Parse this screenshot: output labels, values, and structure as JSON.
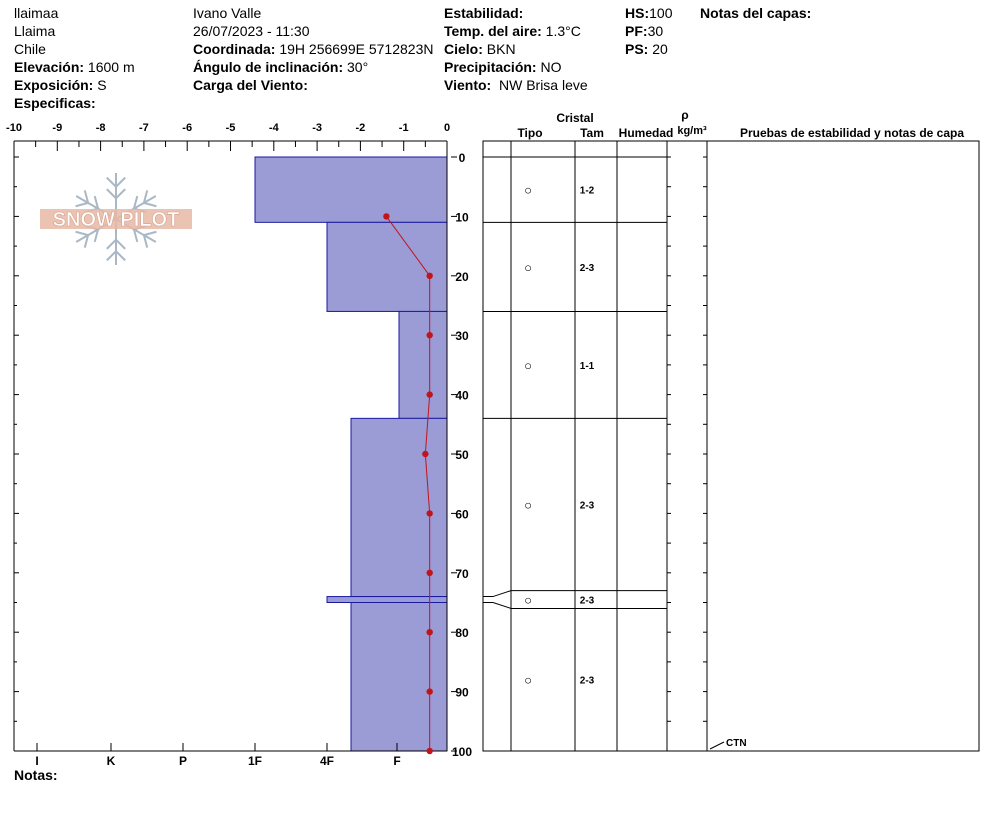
{
  "header": {
    "col1": {
      "line1": "llaimaa",
      "line2": "Llaima",
      "line3": "Chile",
      "elev_label": "Elevación:",
      "elev_value": "1600 m",
      "expo_label": "Exposición:",
      "expo_value": "S",
      "spec_label": "Especificas:"
    },
    "col2": {
      "observer": "Ivano Valle",
      "datetime": "26/07/2023 - 11:30",
      "coord_label": "Coordinada:",
      "coord_value": "19H 256699E 5712823N",
      "slope_label": "Ángulo de inclinación:",
      "slope_value": "30°",
      "wind_load_label": "Carga del Viento:"
    },
    "col3": {
      "stability_label": "Estabilidad:",
      "airtemp_label": "Temp. del aire:",
      "airtemp_value": "1.3°C",
      "sky_label": "Cielo:",
      "sky_value": "BKN",
      "precip_label": "Precipitación:",
      "precip_value": "NO",
      "wind_label": "Viento:",
      "wind_value": "NW Brisa leve"
    },
    "col4": {
      "hs_label": "HS:",
      "hs_value": "100",
      "pf_label": "PF:",
      "pf_value": "30",
      "ps_label": "PS:",
      "ps_value": "20"
    },
    "layer_notes_label": "Notas del capas:"
  },
  "logo_text": "SNOW PILOT",
  "notes_label": "Notas:",
  "colors": {
    "hardness_fill": "#9b9bd6",
    "hardness_stroke": "#1a1aa0",
    "temp_line": "#c0151b",
    "logo": "#e7b9a6",
    "logo_flake": "#a9b8c4"
  },
  "chart_data": {
    "type": "snow_profile",
    "temperature_axis": {
      "ticks": [
        "-10",
        "-9",
        "-8",
        "-7",
        "-6",
        "-5",
        "-4",
        "-3",
        "-2",
        "-1",
        "0"
      ],
      "range": [
        -10,
        0
      ]
    },
    "hardness_axis": {
      "labels": [
        "I",
        "K",
        "P",
        "1F",
        "4F",
        "F"
      ]
    },
    "depth_axis": {
      "ticks": [
        "0",
        "10",
        "20",
        "30",
        "40",
        "50",
        "60",
        "70",
        "80",
        "90",
        "100"
      ],
      "range": [
        0,
        100
      ]
    },
    "hardness_layers": [
      {
        "top": 0,
        "bottom": 11,
        "hardness": "1F"
      },
      {
        "top": 11,
        "bottom": 26,
        "hardness": "4F"
      },
      {
        "top": 26,
        "bottom": 44,
        "hardness": "F-"
      },
      {
        "top": 44,
        "bottom": 74,
        "hardness": "4F-"
      },
      {
        "top": 74,
        "bottom": 75,
        "hardness": "4F"
      },
      {
        "top": 75,
        "bottom": 100,
        "hardness": "4F-"
      }
    ],
    "temperature_profile": [
      {
        "depth": 10,
        "temp": -1.4
      },
      {
        "depth": 20,
        "temp": -0.4
      },
      {
        "depth": 30,
        "temp": -0.4
      },
      {
        "depth": 40,
        "temp": -0.4
      },
      {
        "depth": 50,
        "temp": -0.5
      },
      {
        "depth": 60,
        "temp": -0.4
      },
      {
        "depth": 70,
        "temp": -0.4
      },
      {
        "depth": 80,
        "temp": -0.4
      },
      {
        "depth": 90,
        "temp": -0.4
      },
      {
        "depth": 100,
        "temp": -0.4
      }
    ],
    "crystal_header": {
      "cristal": "Cristal",
      "tipo": "Tipo",
      "tam": "Tam",
      "humedad": "Humedad",
      "rho": "ρ",
      "density_unit": "kg/m³",
      "tests": "Pruebas de estabilidad y notas de capa"
    },
    "layer_boundaries": [
      0,
      11,
      26,
      44,
      73,
      76,
      100
    ],
    "crystals": [
      {
        "depth": 5.5,
        "tipo": "○",
        "tam": "1-2"
      },
      {
        "depth": 18.5,
        "tipo": "○",
        "tam": "2-3"
      },
      {
        "depth": 35,
        "tipo": "○",
        "tam": "1-1"
      },
      {
        "depth": 58.5,
        "tipo": "○",
        "tam": "2-3"
      },
      {
        "depth": 74.5,
        "tipo": "○",
        "tam": "2-3"
      },
      {
        "depth": 88,
        "tipo": "○",
        "tam": "2-3"
      }
    ],
    "test_notes": [
      {
        "depth": 100,
        "text": "CTN"
      }
    ]
  }
}
